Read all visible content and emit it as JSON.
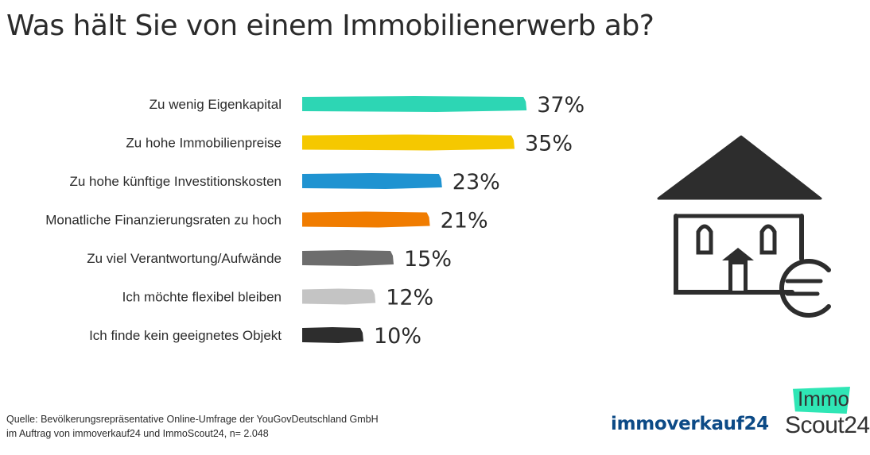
{
  "title": "Was hält Sie von einem Immobilienerwerb ab?",
  "chart_data": {
    "type": "bar",
    "orientation": "horizontal",
    "categories": [
      "Zu wenig Eigenkapital",
      "Zu hohe Immobilienpreise",
      "Zu hohe künftige Investitionskosten",
      "Monatliche Finanzierungsraten zu hoch",
      "Zu viel Verantwortung/Aufwände",
      "Ich möchte flexibel bleiben",
      "Ich finde kein geeignetes Objekt"
    ],
    "values": [
      37,
      35,
      23,
      21,
      15,
      12,
      10
    ],
    "value_labels": [
      "37%",
      "35%",
      "23%",
      "21%",
      "15%",
      "12%",
      "10%"
    ],
    "colors": [
      "#2dd6b4",
      "#f5c800",
      "#1f93d1",
      "#f07c00",
      "#6d6d6d",
      "#c4c4c4",
      "#2d2d2d"
    ],
    "unit": "%",
    "grid": false,
    "legend": "none"
  },
  "source": {
    "line1": "Quelle: Bevölkerungsrepräsentative Online-Umfrage der YouGovDeutschland GmbH",
    "line2": "im Auftrag von immoverkauf24 und ImmoScout24, n= 2.048"
  },
  "logos": {
    "immoverkauf": "immoverkauf24",
    "immoscout_top": "Immo",
    "immoscout_bottom": "Scout24"
  },
  "illustration": {
    "icon": "house-euro-icon"
  }
}
